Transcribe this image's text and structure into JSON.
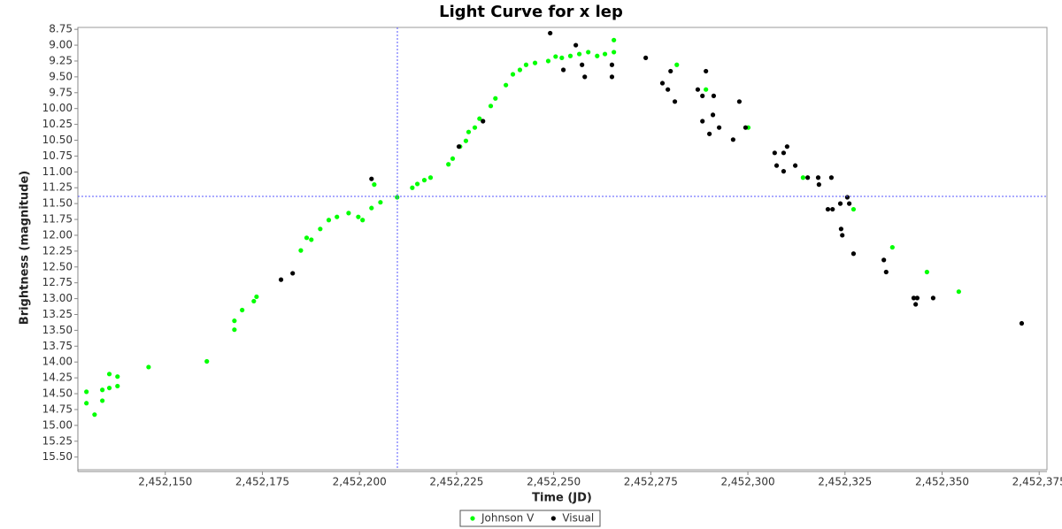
{
  "chart_data": {
    "type": "scatter",
    "title": "Light Curve for x lep",
    "x_label": "Time (JD)",
    "y_label": "Brightness (magnitude)",
    "xlim": [
      2452127.5,
      2452377
    ],
    "ylim": [
      15.7,
      8.72
    ],
    "xticks": [
      {
        "value": 2452150,
        "label": "2,452,150"
      },
      {
        "value": 2452175,
        "label": "2,452,175"
      },
      {
        "value": 2452200,
        "label": "2,452,200"
      },
      {
        "value": 2452225,
        "label": "2,452,225"
      },
      {
        "value": 2452250,
        "label": "2,452,250"
      },
      {
        "value": 2452275,
        "label": "2,452,275"
      },
      {
        "value": 2452300,
        "label": "2,452,300"
      },
      {
        "value": 2452325,
        "label": "2,452,325"
      },
      {
        "value": 2452350,
        "label": "2,452,350"
      },
      {
        "value": 2452375,
        "label": "2,452,375"
      }
    ],
    "yticks": [
      8.75,
      {
        "value": 9,
        "label": "9.00"
      },
      9.25,
      {
        "value": 9.5,
        "label": "9.50"
      },
      9.75,
      {
        "value": 10,
        "label": "10.00"
      },
      10.25,
      {
        "value": 10.5,
        "label": "10.50"
      },
      10.75,
      {
        "value": 11,
        "label": "11.00"
      },
      11.25,
      {
        "value": 11.5,
        "label": "11.50"
      },
      11.75,
      {
        "value": 12,
        "label": "12.00"
      },
      12.25,
      {
        "value": 12.5,
        "label": "12.50"
      },
      12.75,
      {
        "value": 13,
        "label": "13.00"
      },
      13.25,
      {
        "value": 13.5,
        "label": "13.50"
      },
      13.75,
      {
        "value": 14,
        "label": "14.00"
      },
      14.25,
      {
        "value": 14.5,
        "label": "14.50"
      },
      14.75,
      {
        "value": 15,
        "label": "15.00"
      },
      15.25,
      {
        "value": 15.5,
        "label": "15.50"
      }
    ],
    "series": [
      {
        "name": "Johnson V",
        "color": "#00ff00",
        "x": [
          2452129.7,
          2452129.7,
          2452131.8,
          2452133.8,
          2452133.8,
          2452135.6,
          2452135.6,
          2452137.7,
          2452137.7,
          2452145.7,
          2452160.7,
          2452167.8,
          2452167.8,
          2452169.8,
          2452172.8,
          2452173.5,
          2452184.9,
          2452186.4,
          2452187.6,
          2452189.9,
          2452192.1,
          2452194.2,
          2452197.2,
          2452199.7,
          2452200.8,
          2452203.1,
          2452203.8,
          2452205.4,
          2452209.7,
          2452213.6,
          2452214.9,
          2452216.7,
          2452218.3,
          2452222.9,
          2452224.0,
          2452225.9,
          2452227.4,
          2452228.1,
          2452229.7,
          2452230.9,
          2452233.8,
          2452235.0,
          2452237.7,
          2452239.5,
          2452241.3,
          2452242.9,
          2452245.2,
          2452248.6,
          2452250.5,
          2452252.1,
          2452254.3,
          2452256.6,
          2452258.9,
          2452261.2,
          2452263.2,
          2452265.5,
          2452265.5,
          2452281.7,
          2452289.2,
          2452300.1,
          2452314.2,
          2452327.2,
          2452337.2,
          2452346.1,
          2452354.3
        ],
        "values": [
          14.47,
          14.65,
          14.83,
          14.44,
          14.61,
          14.41,
          14.19,
          14.23,
          14.38,
          14.08,
          13.99,
          13.35,
          13.49,
          13.18,
          13.04,
          12.97,
          12.24,
          12.04,
          12.07,
          11.9,
          11.76,
          11.71,
          11.65,
          11.71,
          11.76,
          11.57,
          11.2,
          11.48,
          11.4,
          11.25,
          11.19,
          11.13,
          11.09,
          10.88,
          10.79,
          10.6,
          10.51,
          10.37,
          10.3,
          10.16,
          9.96,
          9.84,
          9.63,
          9.46,
          9.39,
          9.31,
          9.28,
          9.25,
          9.18,
          9.2,
          9.17,
          9.14,
          9.11,
          9.17,
          9.14,
          8.92,
          9.11,
          9.31,
          9.7,
          10.3,
          11.09,
          11.59,
          12.19,
          12.58,
          12.89
        ]
      },
      {
        "name": "Visual",
        "color": "#000000",
        "x": [
          2452179.8,
          2452182.8,
          2452203.1,
          2452225.6,
          2452231.8,
          2452249.1,
          2452252.5,
          2452255.7,
          2452257.3,
          2452258.0,
          2452265.0,
          2452265.0,
          2452273.7,
          2452278.0,
          2452279.4,
          2452280.1,
          2452281.2,
          2452287.1,
          2452288.3,
          2452288.3,
          2452289.2,
          2452290.1,
          2452291.0,
          2452291.2,
          2452292.6,
          2452296.2,
          2452297.8,
          2452299.4,
          2452306.9,
          2452307.4,
          2452309.2,
          2452309.2,
          2452310.1,
          2452312.2,
          2452315.4,
          2452318.1,
          2452318.3,
          2452320.6,
          2452321.5,
          2452321.8,
          2452323.8,
          2452324.0,
          2452324.3,
          2452325.6,
          2452326.1,
          2452327.2,
          2452335.0,
          2452335.6,
          2452342.7,
          2452343.2,
          2452343.6,
          2452347.7,
          2452370.5
        ],
        "values": [
          12.7,
          12.6,
          11.11,
          10.6,
          10.2,
          8.81,
          9.39,
          9.0,
          9.31,
          9.5,
          9.31,
          9.5,
          9.2,
          9.6,
          9.7,
          9.41,
          9.89,
          9.7,
          9.8,
          10.2,
          9.41,
          10.4,
          10.1,
          9.8,
          10.3,
          10.49,
          9.89,
          10.3,
          10.7,
          10.9,
          10.7,
          10.99,
          10.6,
          10.9,
          11.09,
          11.09,
          11.2,
          11.59,
          11.09,
          11.59,
          11.5,
          11.9,
          12.0,
          11.4,
          11.5,
          12.29,
          12.39,
          12.58,
          12.99,
          13.09,
          12.99,
          12.99,
          13.39
        ]
      }
    ]
  }
}
